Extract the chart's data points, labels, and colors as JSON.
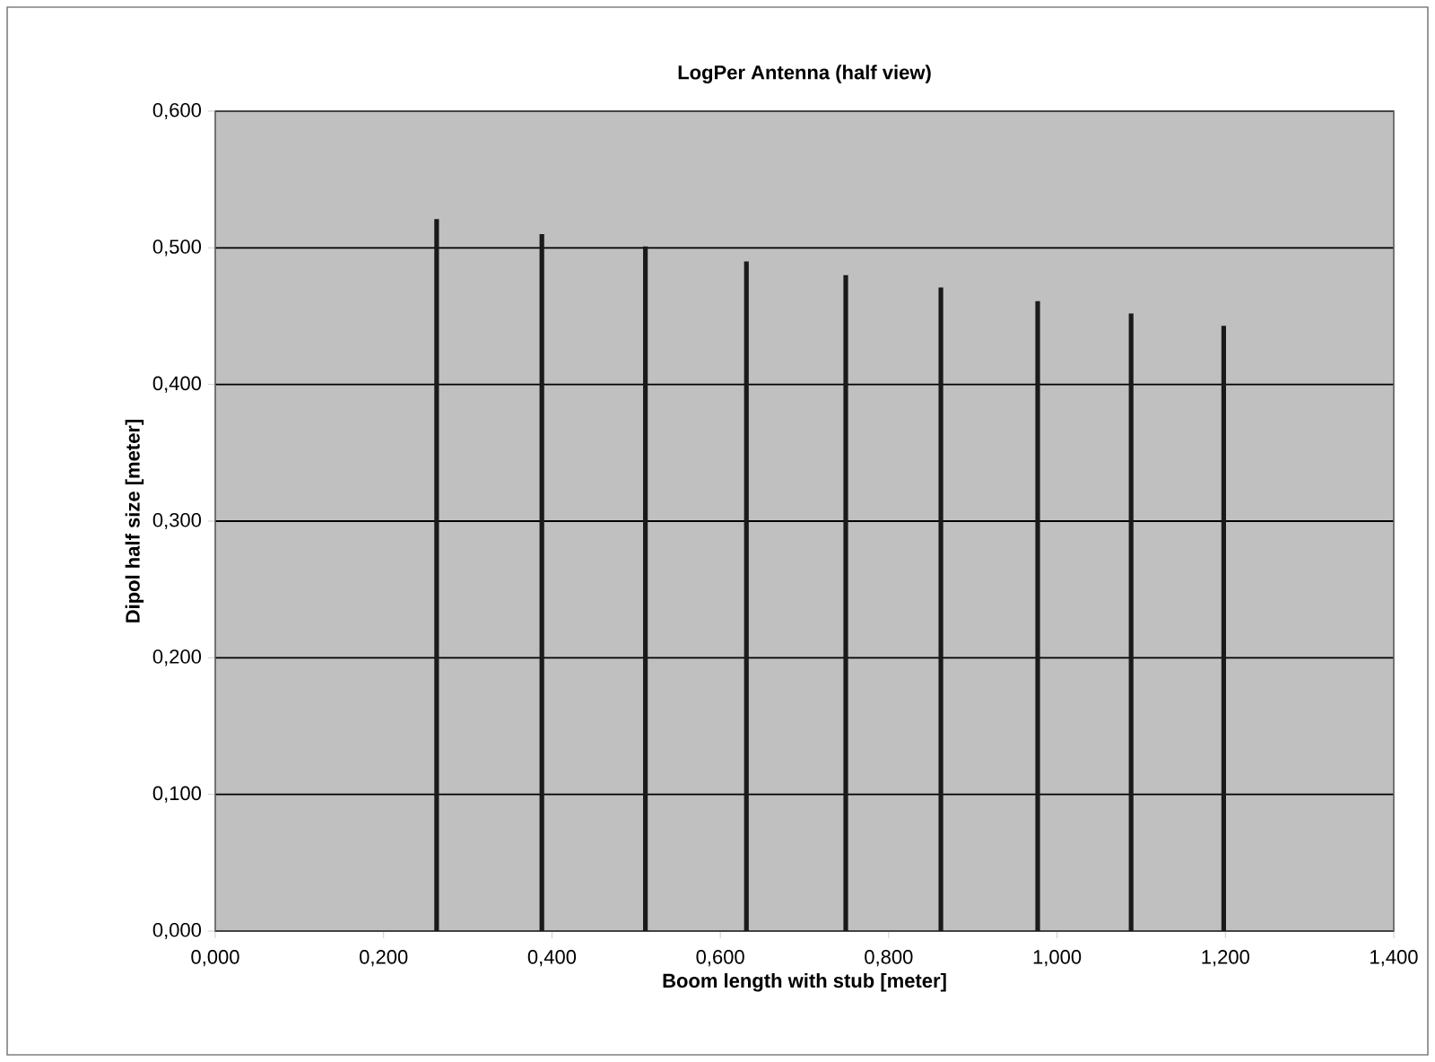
{
  "chart_data": {
    "type": "bar",
    "title": "LogPer Antenna (half view)",
    "xlabel": "Boom length with stub [meter]",
    "ylabel": "Dipol half size [meter]",
    "x": [
      0.263,
      0.388,
      0.511,
      0.631,
      0.749,
      0.862,
      0.977,
      1.088,
      1.198
    ],
    "values": [
      0.521,
      0.51,
      0.501,
      0.49,
      0.48,
      0.471,
      0.461,
      0.452,
      0.443
    ],
    "color": "#1a1a1a",
    "xlim": [
      0,
      1.4
    ],
    "ylim": [
      0,
      0.6
    ],
    "xticks": [
      {
        "value": 0,
        "label": "0,000"
      },
      {
        "value": 0.2,
        "label": "0,200"
      },
      {
        "value": 0.4,
        "label": "0,400"
      },
      {
        "value": 0.6,
        "label": "0,600"
      },
      {
        "value": 0.8,
        "label": "0,800"
      },
      {
        "value": 1.0,
        "label": "1,000"
      },
      {
        "value": 1.2,
        "label": "1,200"
      },
      {
        "value": 1.4,
        "label": "1,400"
      }
    ],
    "yticks": [
      {
        "value": 0,
        "label": "0,000"
      },
      {
        "value": 0.1,
        "label": "0,100"
      },
      {
        "value": 0.2,
        "label": "0,200"
      },
      {
        "value": 0.3,
        "label": "0,300"
      },
      {
        "value": 0.4,
        "label": "0,400"
      },
      {
        "value": 0.5,
        "label": "0,500"
      },
      {
        "value": 0.6,
        "label": "0,600"
      }
    ],
    "grid": "y"
  }
}
